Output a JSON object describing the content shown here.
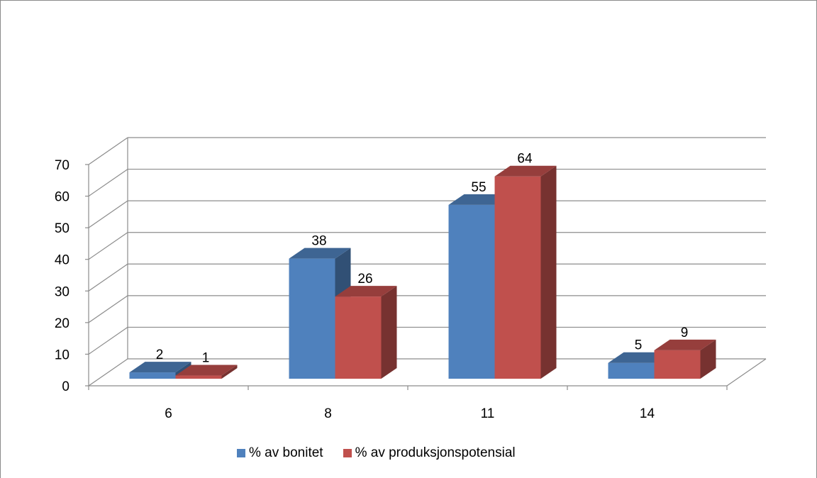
{
  "chart_data": {
    "type": "bar",
    "title": "",
    "xlabel": "",
    "ylabel": "",
    "categories": [
      "6",
      "8",
      "11",
      "14"
    ],
    "series": [
      {
        "name": "% av bonitet",
        "values": [
          2,
          38,
          55,
          5
        ],
        "color": "#4f81bd"
      },
      {
        "name": "% av produksjonspotensial",
        "values": [
          1,
          26,
          64,
          9
        ],
        "color": "#c0504d"
      }
    ],
    "ylim": [
      0,
      70
    ],
    "yticks": [
      "0",
      "10",
      "20",
      "30",
      "40",
      "50",
      "60",
      "70"
    ],
    "grid": true,
    "legend_position": "bottom",
    "three_d": true
  }
}
